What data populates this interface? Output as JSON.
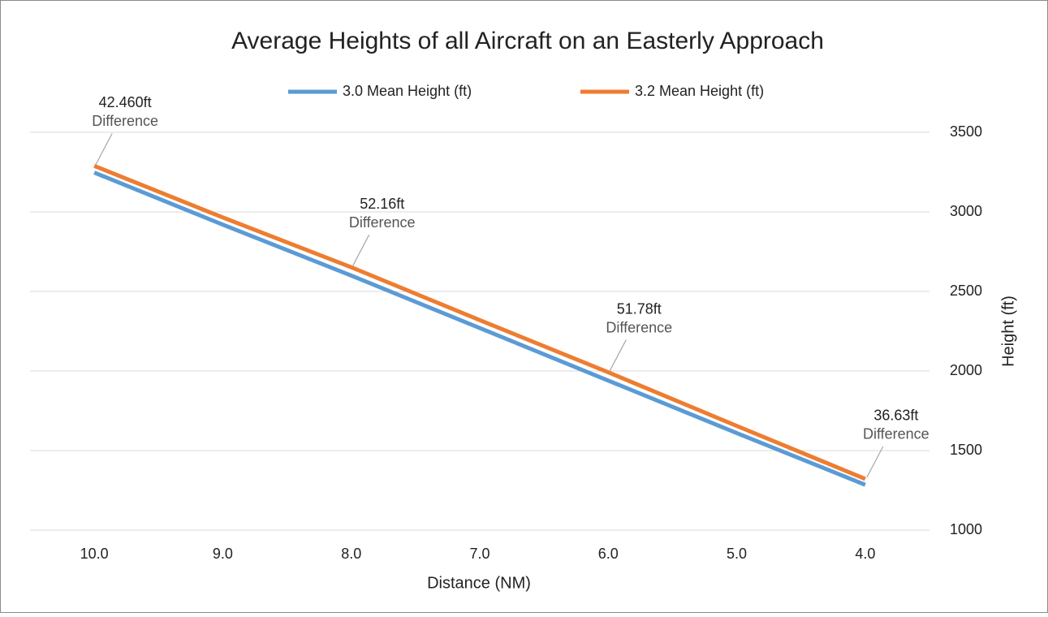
{
  "chart_data": {
    "type": "line",
    "title": "Average Heights of all Aircraft on an Easterly Approach",
    "x_label": "Distance (NM)",
    "y_label": "Height (ft)",
    "categories": [
      "10.0",
      "9.0",
      "8.0",
      "7.0",
      "6.0",
      "5.0",
      "4.0"
    ],
    "series": [
      {
        "name": "3.0 Mean Height (ft)",
        "color": "#5b9bd5",
        "values": [
          3247,
          2920,
          2600,
          2270,
          1940,
          1610,
          1285
        ]
      },
      {
        "name": "3.2 Mean Height (ft)",
        "color": "#ed7d31",
        "values": [
          3289,
          2965,
          2652,
          2320,
          1992,
          1655,
          1322
        ]
      }
    ],
    "ylim": [
      1000,
      3500
    ],
    "yticks": [
      1000,
      1500,
      2000,
      2500,
      3000,
      3500
    ],
    "y_axis_side": "right",
    "grid": true,
    "legend": "top",
    "annotations": [
      {
        "text": "42.460ft",
        "note": "Difference"
      },
      {
        "text": "52.16ft",
        "note": "Difference"
      },
      {
        "text": "51.78ft",
        "note": "Difference"
      },
      {
        "text": "36.63ft",
        "note": "Difference"
      }
    ]
  }
}
